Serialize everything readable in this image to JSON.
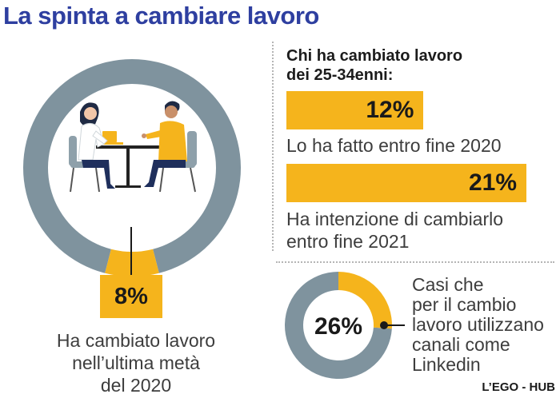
{
  "title": "La spinta a cambiare lavoro",
  "colors": {
    "title": "#2e3fa0",
    "gray": "#7f939e",
    "accent": "#f5b41c",
    "text": "#3d3d3d",
    "dark": "#1a1a1a"
  },
  "left": {
    "percent_label": "8%",
    "caption": "Ha cambiato lavoro\nnell’ultima metà\ndel 2020",
    "illustration": "interview-meeting-icon"
  },
  "right": {
    "heading": "Chi ha cambiato lavoro\ndei 25-34enni:",
    "bars": [
      {
        "label": "12%",
        "caption": "Lo ha fatto entro fine 2020"
      },
      {
        "label": "21%",
        "caption": "Ha intenzione di cambiarlo\nentro fine 2021"
      }
    ],
    "donut": {
      "label": "26%",
      "caption": "Casi che\nper il cambio\nlavoro utilizzano\ncanali come\nLinkedin"
    }
  },
  "source": "L’EGO - HUB",
  "chart_data": [
    {
      "type": "pie",
      "values": [
        8,
        92
      ],
      "display": "donut"
    },
    {
      "type": "bar",
      "orientation": "horizontal",
      "categories": [
        "Lo ha fatto entro fine 2020",
        "Ha intenzione di cambiarlo entro fine 2021"
      ],
      "values": [
        12,
        21
      ]
    },
    {
      "type": "pie",
      "values": [
        26,
        74
      ],
      "display": "donut"
    }
  ]
}
